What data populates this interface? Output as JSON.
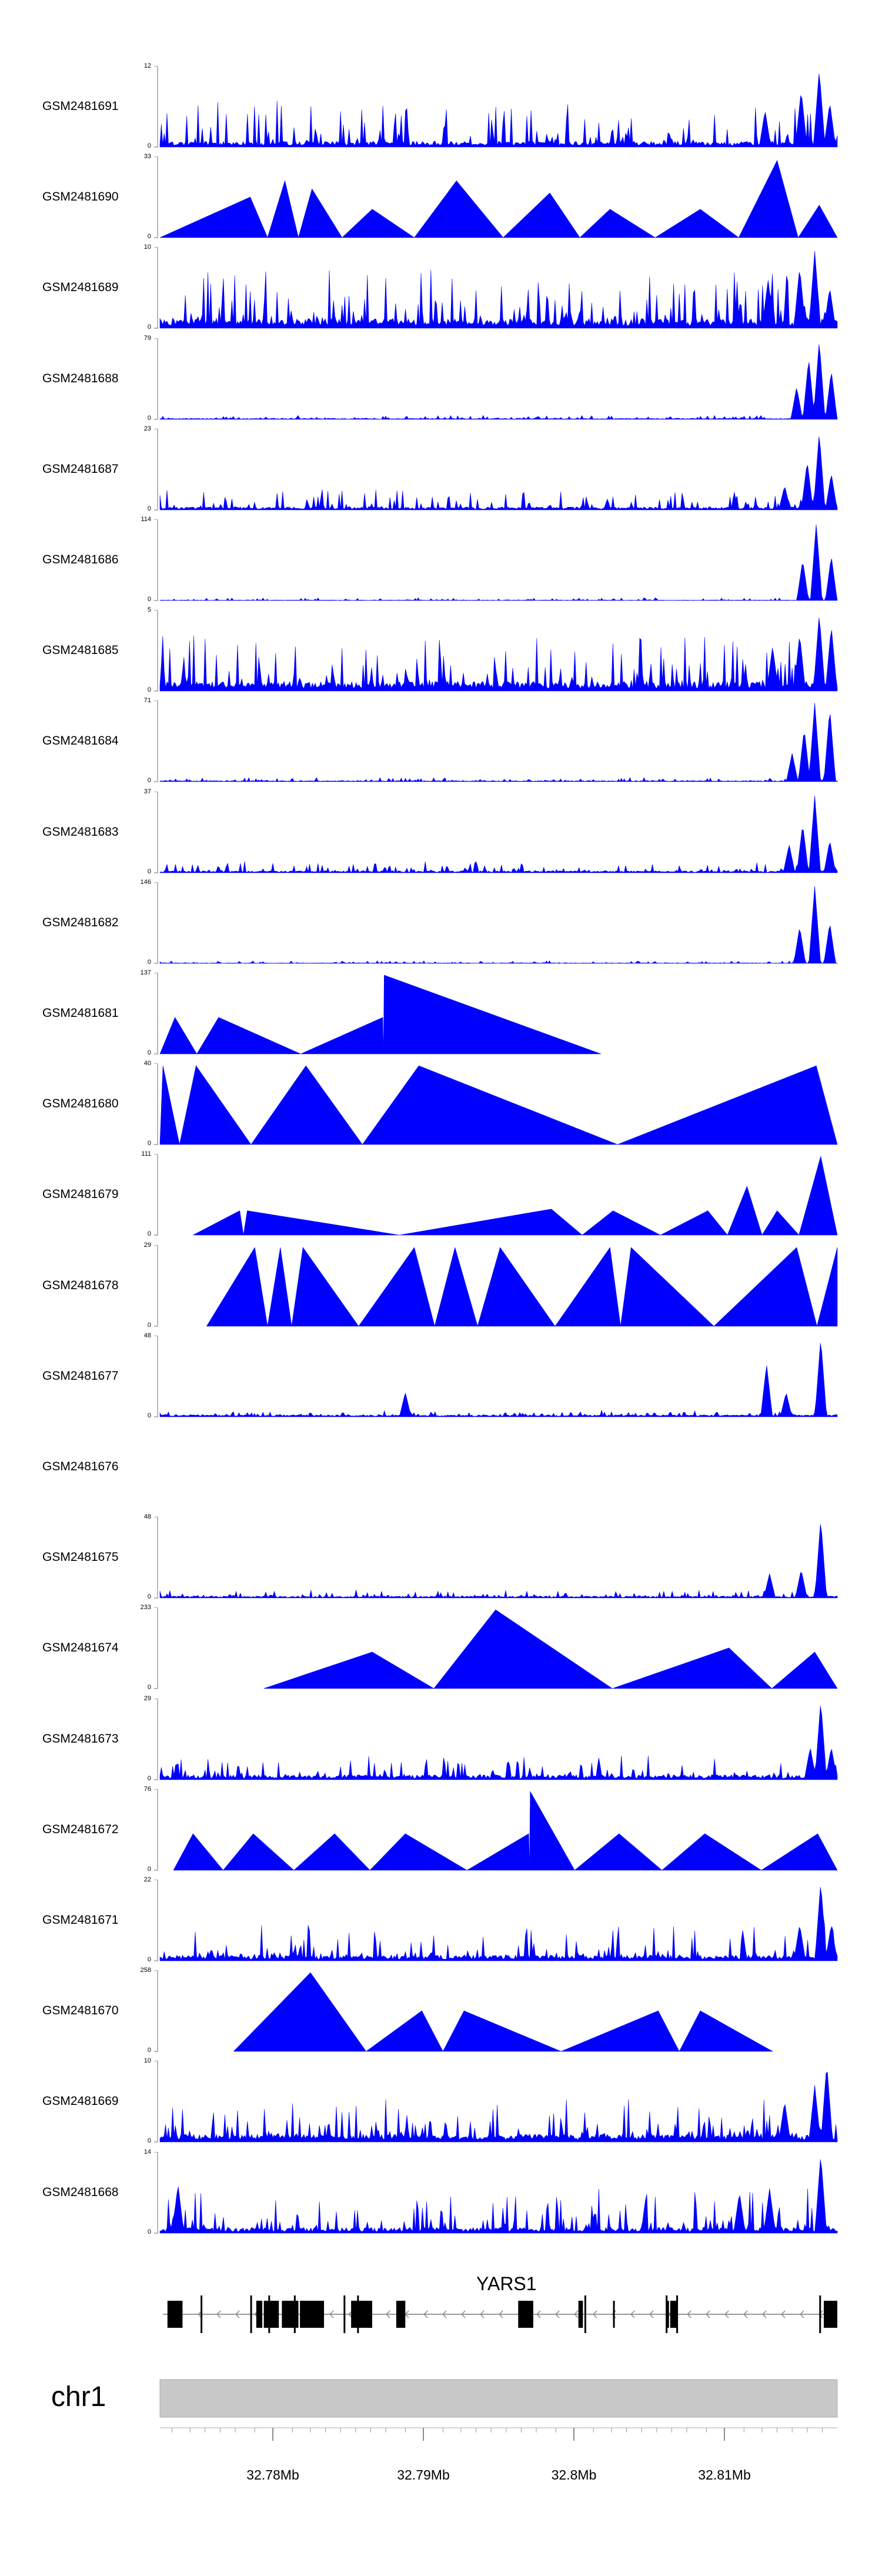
{
  "colors": {
    "signal": "#0000ff",
    "gene": "#000000",
    "ideogram": "#c8c8c8"
  },
  "chart_data": {
    "type": "area",
    "xlim": [
      32.7725,
      32.8175
    ],
    "x_unit": "Mb",
    "tracks": [
      {
        "name": "GSM2481691",
        "ymax": "12",
        "ymin": "0",
        "pattern": "noise",
        "baseline": 0.06,
        "spikes": 0.5,
        "peaks": [
          [
            32.8127,
            0.45
          ],
          [
            32.8151,
            0.7
          ],
          [
            32.8163,
            0.95
          ],
          [
            32.817,
            0.55
          ]
        ]
      },
      {
        "name": "GSM2481690",
        "ymax": "33",
        "ymin": "0",
        "pattern": "triangles",
        "peaks": [
          [
            32.7785,
            0.5
          ],
          [
            32.7808,
            0.7
          ],
          [
            32.7826,
            0.6
          ],
          [
            32.7866,
            0.35
          ],
          [
            32.7922,
            0.7
          ],
          [
            32.7984,
            0.55
          ],
          [
            32.8024,
            0.35
          ],
          [
            32.8084,
            0.35
          ],
          [
            32.8135,
            0.95
          ],
          [
            32.8163,
            0.4
          ]
        ]
      },
      {
        "name": "GSM2481689",
        "ymax": "10",
        "ymin": "0",
        "pattern": "noise",
        "baseline": 0.1,
        "spikes": 0.65,
        "peaks": [
          [
            32.8129,
            0.6
          ],
          [
            32.815,
            0.75
          ],
          [
            32.816,
            0.95
          ],
          [
            32.817,
            0.5
          ]
        ]
      },
      {
        "name": "GSM2481688",
        "ymax": "79",
        "ymin": "0",
        "pattern": "noise",
        "baseline": 0.01,
        "spikes": 0.04,
        "peaks": [
          [
            32.8148,
            0.4
          ],
          [
            32.8156,
            0.75
          ],
          [
            32.8163,
            0.97
          ],
          [
            32.8171,
            0.6
          ]
        ]
      },
      {
        "name": "GSM2481687",
        "ymax": "23",
        "ymin": "0",
        "pattern": "noise",
        "baseline": 0.03,
        "spikes": 0.22,
        "peaks": [
          [
            32.814,
            0.3
          ],
          [
            32.8155,
            0.6
          ],
          [
            32.8163,
            0.95
          ],
          [
            32.8171,
            0.45
          ]
        ]
      },
      {
        "name": "GSM2481686",
        "ymax": "114",
        "ymin": "0",
        "pattern": "noise",
        "baseline": 0.005,
        "spikes": 0.03,
        "peaks": [
          [
            32.8152,
            0.5
          ],
          [
            32.8161,
            0.95
          ],
          [
            32.8171,
            0.55
          ]
        ]
      },
      {
        "name": "GSM2481685",
        "ymax": "5",
        "ymin": "0",
        "pattern": "noise",
        "baseline": 0.1,
        "spikes": 0.6,
        "peaks": [
          [
            32.8132,
            0.55
          ],
          [
            32.815,
            0.7
          ],
          [
            32.8163,
            0.95
          ],
          [
            32.8171,
            0.8
          ]
        ]
      },
      {
        "name": "GSM2481684",
        "ymax": "71",
        "ymin": "0",
        "pattern": "noise",
        "baseline": 0.01,
        "spikes": 0.04,
        "peaks": [
          [
            32.8145,
            0.35
          ],
          [
            32.8153,
            0.65
          ],
          [
            32.816,
            0.97
          ],
          [
            32.817,
            0.9
          ]
        ]
      },
      {
        "name": "GSM2481683",
        "ymax": "37",
        "ymin": "0",
        "pattern": "noise",
        "baseline": 0.02,
        "spikes": 0.12,
        "peaks": [
          [
            32.8143,
            0.35
          ],
          [
            32.8152,
            0.6
          ],
          [
            32.816,
            0.95
          ],
          [
            32.817,
            0.4
          ]
        ]
      },
      {
        "name": "GSM2481682",
        "ymax": "146",
        "ymin": "0",
        "pattern": "noise",
        "baseline": 0.005,
        "spikes": 0.03,
        "peaks": [
          [
            32.815,
            0.45
          ],
          [
            32.816,
            0.95
          ],
          [
            32.817,
            0.5
          ]
        ]
      },
      {
        "name": "GSM2481681",
        "ymax": "137",
        "ymin": "0",
        "pattern": "triangles",
        "end": 32.8018,
        "peaks": [
          [
            32.7735,
            0.45
          ],
          [
            32.7764,
            0.45
          ],
          [
            32.7873,
            0.45
          ],
          [
            32.7874,
            0.97
          ]
        ]
      },
      {
        "name": "GSM2481680",
        "ymax": "40",
        "ymin": "0",
        "pattern": "triangles",
        "peaks": [
          [
            32.7727,
            0.97
          ],
          [
            32.7749,
            0.97
          ],
          [
            32.7822,
            0.97
          ],
          [
            32.7897,
            0.97
          ],
          [
            32.8161,
            0.97
          ]
        ]
      },
      {
        "name": "GSM2481679",
        "ymax": "111",
        "ymin": "0",
        "pattern": "triangles",
        "start": 32.7747,
        "peaks": [
          [
            32.7778,
            0.3
          ],
          [
            32.7783,
            0.3
          ],
          [
            32.7985,
            0.32
          ],
          [
            32.8026,
            0.3
          ],
          [
            32.8089,
            0.3
          ],
          [
            32.8115,
            0.6
          ],
          [
            32.8135,
            0.3
          ],
          [
            32.8164,
            0.97
          ]
        ]
      },
      {
        "name": "GSM2481678",
        "ymax": "29",
        "ymin": "0",
        "pattern": "triangles",
        "start": 32.7756,
        "end": 32.8175,
        "peaks": [
          [
            32.7788,
            0.97
          ],
          [
            32.7805,
            0.97
          ],
          [
            32.782,
            0.97
          ],
          [
            32.7894,
            0.97
          ],
          [
            32.7921,
            0.97
          ],
          [
            32.7951,
            0.97
          ],
          [
            32.8024,
            0.97
          ],
          [
            32.8038,
            0.97
          ],
          [
            32.8148,
            0.97
          ],
          [
            32.8175,
            0.97
          ]
        ]
      },
      {
        "name": "GSM2481677",
        "ymax": "48",
        "ymin": "0",
        "pattern": "noise",
        "baseline": 0.02,
        "spikes": 0.06,
        "peaks": [
          [
            32.7888,
            0.3
          ],
          [
            32.8128,
            0.65
          ],
          [
            32.8141,
            0.3
          ],
          [
            32.8164,
            0.97
          ]
        ]
      },
      {
        "name": "GSM2481676",
        "ymax": "",
        "ymin": "",
        "pattern": "empty",
        "peaks": []
      },
      {
        "name": "GSM2481675",
        "ymax": "48",
        "ymin": "0",
        "pattern": "noise",
        "baseline": 0.02,
        "spikes": 0.08,
        "peaks": [
          [
            32.813,
            0.3
          ],
          [
            32.8151,
            0.35
          ],
          [
            32.8164,
            0.97
          ]
        ]
      },
      {
        "name": "GSM2481674",
        "ymax": "233",
        "ymin": "0",
        "pattern": "triangles",
        "start": 32.7794,
        "peaks": [
          [
            32.7866,
            0.45
          ],
          [
            32.7948,
            0.97
          ],
          [
            32.8103,
            0.5
          ],
          [
            32.816,
            0.45
          ]
        ]
      },
      {
        "name": "GSM2481673",
        "ymax": "29",
        "ymin": "0",
        "pattern": "noise",
        "baseline": 0.05,
        "spikes": 0.25,
        "peaks": [
          [
            32.8157,
            0.4
          ],
          [
            32.8164,
            0.97
          ],
          [
            32.8171,
            0.4
          ]
        ]
      },
      {
        "name": "GSM2481672",
        "ymax": "76",
        "ymin": "0",
        "pattern": "triangles",
        "start": 32.7734,
        "peaks": [
          [
            32.7747,
            0.45
          ],
          [
            32.7787,
            0.45
          ],
          [
            32.7841,
            0.45
          ],
          [
            32.7888,
            0.45
          ],
          [
            32.797,
            0.45
          ],
          [
            32.7971,
            0.97
          ],
          [
            32.803,
            0.45
          ],
          [
            32.8087,
            0.45
          ],
          [
            32.8162,
            0.45
          ]
        ]
      },
      {
        "name": "GSM2481671",
        "ymax": "22",
        "ymin": "0",
        "pattern": "noise",
        "baseline": 0.06,
        "spikes": 0.4,
        "peaks": [
          [
            32.815,
            0.45
          ],
          [
            32.8164,
            0.97
          ],
          [
            32.8171,
            0.45
          ]
        ]
      },
      {
        "name": "GSM2481670",
        "ymax": "258",
        "ymin": "0",
        "pattern": "triangles",
        "start": 32.7774,
        "end": 32.8132,
        "peaks": [
          [
            32.7825,
            0.97
          ],
          [
            32.7899,
            0.5
          ],
          [
            32.7927,
            0.5
          ],
          [
            32.8056,
            0.5
          ],
          [
            32.8084,
            0.5
          ]
        ]
      },
      {
        "name": "GSM2481669",
        "ymax": "10",
        "ymin": "0",
        "pattern": "noise",
        "baseline": 0.08,
        "spikes": 0.45,
        "peaks": [
          [
            32.814,
            0.5
          ],
          [
            32.816,
            0.7
          ],
          [
            32.8168,
            0.97
          ]
        ]
      },
      {
        "name": "GSM2481668",
        "ymax": "14",
        "ymin": "0",
        "pattern": "noise",
        "baseline": 0.06,
        "spikes": 0.5,
        "peaks": [
          [
            32.7737,
            0.6
          ],
          [
            32.811,
            0.5
          ],
          [
            32.813,
            0.55
          ],
          [
            32.8164,
            0.97
          ]
        ]
      }
    ],
    "gene": {
      "name": "YARS1",
      "strand": "-",
      "start": 32.7727,
      "end": 32.8175,
      "exons": [
        [
          32.773,
          32.774
        ],
        [
          32.7789,
          32.7793
        ],
        [
          32.7794,
          32.7804
        ],
        [
          32.7806,
          32.7817
        ],
        [
          32.7818,
          32.7834
        ],
        [
          32.7852,
          32.7866
        ],
        [
          32.7882,
          32.7888
        ],
        [
          32.7963,
          32.7973
        ],
        [
          32.8003,
          32.8006
        ],
        [
          32.8026,
          32.8027
        ],
        [
          32.8062,
          32.8063
        ],
        [
          32.8064,
          32.8069
        ],
        [
          32.8166,
          32.8175
        ]
      ],
      "thin_bars": [
        [
          32.7752,
          32.7753
        ],
        [
          32.7785,
          32.7786
        ],
        [
          32.7797,
          32.7798
        ],
        [
          32.7814,
          32.7815
        ],
        [
          32.7847,
          32.7848
        ],
        [
          32.7856,
          32.7857
        ],
        [
          32.8007,
          32.8008
        ],
        [
          32.8061,
          32.8062
        ],
        [
          32.8068,
          32.8069
        ],
        [
          32.8163,
          32.8164
        ]
      ]
    },
    "chromosome": "chr1",
    "axis_ticks": [
      32.7733,
      32.7745,
      32.7755,
      32.7765,
      32.7775,
      32.7788,
      32.78,
      32.7813,
      32.7825,
      32.7835,
      32.7845,
      32.7855,
      32.7865,
      32.7875,
      32.7888,
      32.79,
      32.7913,
      32.7925,
      32.7935,
      32.7945,
      32.7955,
      32.7965,
      32.7975,
      32.7988,
      32.8,
      32.8013,
      32.8025,
      32.8035,
      32.8045,
      32.8055,
      32.8065,
      32.8075,
      32.8088,
      32.81,
      32.8113,
      32.8125,
      32.8135,
      32.8145,
      32.8155,
      32.8165
    ],
    "axis_labels": [
      {
        "value": 32.78,
        "label": "32.78Mb"
      },
      {
        "value": 32.79,
        "label": "32.79Mb"
      },
      {
        "value": 32.8,
        "label": "32.8Mb"
      },
      {
        "value": 32.81,
        "label": "32.81Mb"
      }
    ]
  }
}
